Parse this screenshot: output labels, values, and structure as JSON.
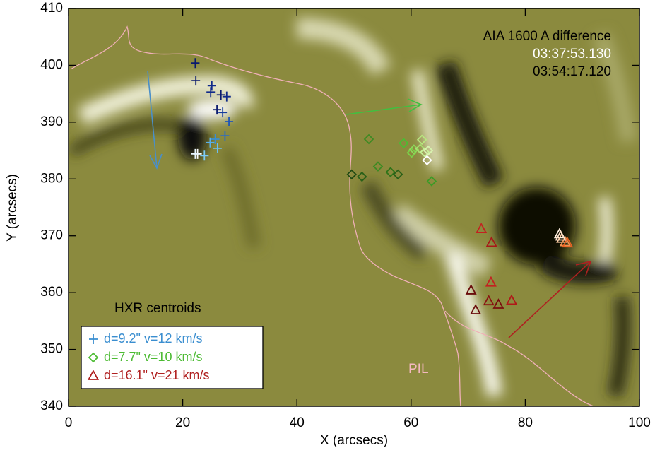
{
  "chart_data": {
    "type": "scatter",
    "title": "AIA 1600 A difference",
    "subtitle_times": [
      "03:37:53.130",
      "03:54:17.120"
    ],
    "annotation": "HXR centroids",
    "pil_label": "PIL",
    "xlabel": "X (arcsecs)",
    "ylabel": "Y (arcsecs)",
    "xlim": [
      0,
      100
    ],
    "ylim": [
      340,
      410
    ],
    "xticks": [
      0,
      20,
      40,
      60,
      80,
      100
    ],
    "yticks": [
      340,
      350,
      360,
      370,
      380,
      390,
      400,
      410
    ],
    "legend": "lower left",
    "series": [
      {
        "name": "d=9.2\" v=12 km/s",
        "color": "#3a8ed0",
        "marker": "plus",
        "x": [
          22.2,
          22.3,
          25.1,
          24.9,
          26.7,
          27.7,
          26.0,
          27.0,
          28.1,
          27.4,
          25.7,
          24.8,
          26.1,
          22.6,
          23.8,
          22.2
        ],
        "values": [
          400.4,
          397.3,
          396.4,
          395.3,
          394.8,
          394.5,
          392.2,
          391.7,
          390.1,
          387.6,
          387.0,
          386.4,
          385.4,
          384.4,
          384.1,
          384.4
        ],
        "colors": [
          "#0a1a6e",
          "#0a1a6e",
          "#102a8a",
          "#102a8a",
          "#0a1a6e",
          "#102a8a",
          "#0a1a6e",
          "#143c9c",
          "#1f56b8",
          "#2a6cc8",
          "#3a8ed0",
          "#5ab0e8",
          "#6cc0f0",
          "#ffffff",
          "#7ccaf4",
          "#e8f6ff"
        ]
      },
      {
        "name": "d=7.7\" v=10 km/s",
        "color": "#4cbb33",
        "marker": "diamond",
        "x": [
          49.6,
          51.4,
          52.6,
          54.2,
          56.4,
          57.7,
          58.7,
          60.1,
          60.5,
          61.9,
          61.6,
          62.4,
          63.0,
          62.8,
          63.6
        ],
        "values": [
          380.8,
          380.4,
          387.0,
          382.2,
          381.2,
          380.8,
          386.3,
          384.6,
          385.2,
          386.9,
          385.3,
          384.7,
          385.0,
          383.3,
          379.6
        ],
        "colors": [
          "#1f4a12",
          "#2a6018",
          "#3c8a22",
          "#3c8a22",
          "#2f7418",
          "#2a6018",
          "#4cbb33",
          "#7ad048",
          "#8ed85a",
          "#b8e880",
          "#a8e070",
          "#c8f098",
          "#d8f4b0",
          "#ffffff",
          "#3c9a26"
        ]
      },
      {
        "name": "d=16.1\" v=21 km/s",
        "color": "#b02020",
        "marker": "triangle",
        "x": [
          72.3,
          74.1,
          74.0,
          70.5,
          71.3,
          73.6,
          75.3,
          77.6,
          86.0,
          86.4,
          87.0,
          87.4,
          86.2
        ],
        "values": [
          371.2,
          368.8,
          361.8,
          360.4,
          356.9,
          358.5,
          357.9,
          358.6,
          370.3,
          369.5,
          368.9,
          368.7,
          369.9
        ],
        "colors": [
          "#c42020",
          "#a81818",
          "#c42020",
          "#6a0c0c",
          "#6a0c0c",
          "#8a1010",
          "#7a0e0e",
          "#b01818",
          "#fff0e0",
          "#f8c8a0",
          "#f09050",
          "#e86020",
          "#fce0c8"
        ]
      }
    ]
  }
}
